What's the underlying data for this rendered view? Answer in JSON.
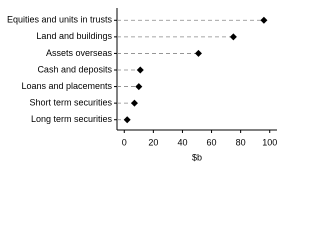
{
  "chart_data": {
    "type": "dot",
    "categories": [
      "Equities and units in trusts",
      "Land and buildings",
      "Assets overseas",
      "Cash and deposits",
      "Loans and placements",
      "Short term securities",
      "Long term securities"
    ],
    "values": [
      96,
      75,
      51,
      11,
      10,
      7,
      2
    ],
    "color": "#000000",
    "xlabel": "$b",
    "xlim": [
      -5,
      105
    ],
    "xticks": [
      0,
      20,
      40,
      60,
      80,
      100
    ]
  }
}
